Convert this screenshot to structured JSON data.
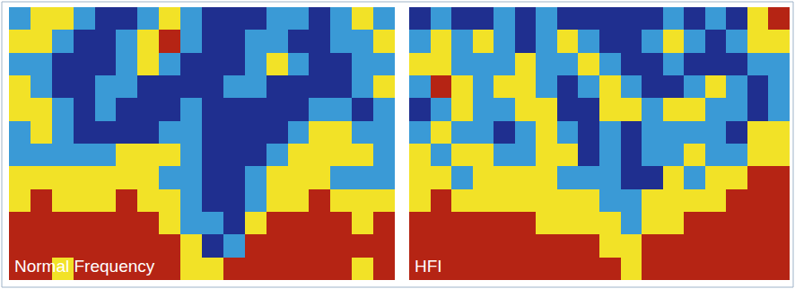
{
  "chart_data": [
    {
      "type": "heatmap",
      "title": "Normal Frequency",
      "tick_labels": false,
      "grid": false,
      "zlim": [
        0,
        3
      ],
      "colors": [
        "#1f2f8f",
        "#3a9ad6",
        "#f2e227",
        "#b52414"
      ],
      "cells": [
        [
          1,
          2,
          2,
          1,
          0,
          0,
          1,
          2,
          1,
          0,
          0,
          0,
          1,
          1,
          0,
          1,
          2,
          1
        ],
        [
          2,
          2,
          1,
          0,
          0,
          1,
          2,
          3,
          1,
          0,
          0,
          1,
          1,
          0,
          0,
          1,
          1,
          2
        ],
        [
          1,
          1,
          0,
          0,
          0,
          1,
          2,
          1,
          0,
          0,
          0,
          1,
          2,
          1,
          0,
          0,
          1,
          1
        ],
        [
          2,
          1,
          0,
          0,
          1,
          1,
          0,
          0,
          0,
          0,
          1,
          1,
          0,
          0,
          0,
          0,
          1,
          2
        ],
        [
          2,
          2,
          1,
          0,
          1,
          0,
          0,
          0,
          1,
          0,
          0,
          0,
          0,
          0,
          1,
          1,
          0,
          1
        ],
        [
          1,
          2,
          1,
          0,
          0,
          0,
          0,
          1,
          1,
          0,
          0,
          0,
          0,
          1,
          2,
          2,
          1,
          1
        ],
        [
          1,
          1,
          1,
          1,
          1,
          2,
          2,
          2,
          1,
          0,
          0,
          0,
          1,
          2,
          2,
          2,
          2,
          1
        ],
        [
          2,
          2,
          2,
          2,
          2,
          2,
          2,
          1,
          1,
          0,
          0,
          1,
          2,
          2,
          2,
          1,
          1,
          1
        ],
        [
          2,
          3,
          2,
          2,
          2,
          3,
          2,
          2,
          1,
          0,
          0,
          1,
          2,
          2,
          3,
          2,
          2,
          2
        ],
        [
          3,
          3,
          3,
          3,
          3,
          3,
          3,
          2,
          1,
          1,
          0,
          2,
          3,
          3,
          3,
          3,
          2,
          3
        ],
        [
          3,
          3,
          3,
          3,
          3,
          3,
          3,
          3,
          2,
          0,
          1,
          3,
          3,
          3,
          3,
          3,
          3,
          3
        ],
        [
          3,
          3,
          2,
          3,
          3,
          3,
          3,
          3,
          2,
          2,
          3,
          3,
          3,
          3,
          3,
          3,
          2,
          3
        ]
      ]
    },
    {
      "type": "heatmap",
      "title": "HFI",
      "tick_labels": false,
      "grid": false,
      "zlim": [
        0,
        3
      ],
      "colors": [
        "#1f2f8f",
        "#3a9ad6",
        "#f2e227",
        "#b52414"
      ],
      "cells": [
        [
          0,
          1,
          0,
          0,
          1,
          0,
          1,
          0,
          0,
          0,
          0,
          0,
          1,
          0,
          1,
          0,
          2,
          3
        ],
        [
          1,
          2,
          1,
          2,
          1,
          0,
          1,
          2,
          1,
          0,
          0,
          1,
          2,
          1,
          0,
          1,
          2,
          2
        ],
        [
          2,
          2,
          1,
          1,
          1,
          2,
          1,
          1,
          2,
          1,
          0,
          0,
          1,
          0,
          0,
          0,
          1,
          1
        ],
        [
          1,
          3,
          2,
          1,
          2,
          2,
          1,
          0,
          1,
          2,
          1,
          0,
          0,
          1,
          2,
          1,
          0,
          1
        ],
        [
          0,
          1,
          2,
          1,
          1,
          2,
          2,
          0,
          0,
          2,
          2,
          1,
          2,
          2,
          1,
          1,
          0,
          1
        ],
        [
          1,
          2,
          1,
          1,
          0,
          1,
          2,
          1,
          0,
          1,
          0,
          1,
          1,
          1,
          1,
          0,
          2,
          2
        ],
        [
          2,
          1,
          2,
          2,
          1,
          1,
          2,
          2,
          0,
          1,
          0,
          1,
          1,
          2,
          1,
          1,
          2,
          2
        ],
        [
          2,
          2,
          1,
          2,
          2,
          2,
          2,
          1,
          1,
          1,
          0,
          0,
          2,
          1,
          2,
          2,
          3,
          3
        ],
        [
          2,
          3,
          2,
          2,
          2,
          2,
          2,
          2,
          2,
          1,
          1,
          2,
          2,
          2,
          2,
          3,
          3,
          3
        ],
        [
          3,
          3,
          3,
          3,
          3,
          3,
          2,
          2,
          2,
          2,
          1,
          2,
          2,
          3,
          3,
          3,
          3,
          3
        ],
        [
          3,
          3,
          3,
          3,
          3,
          3,
          3,
          3,
          3,
          2,
          2,
          3,
          3,
          3,
          3,
          3,
          3,
          3
        ],
        [
          3,
          3,
          3,
          3,
          3,
          3,
          3,
          3,
          3,
          3,
          2,
          3,
          3,
          3,
          3,
          3,
          3,
          3
        ]
      ]
    }
  ]
}
